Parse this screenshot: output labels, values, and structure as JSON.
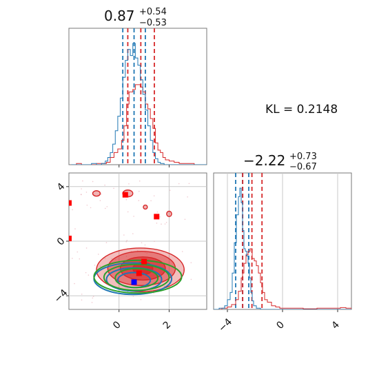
{
  "chart_data": {
    "type": "corner",
    "kl_label": "KL = 0.2148",
    "colors": {
      "ref": "#1f77b4",
      "main": "#d62728",
      "extra": "#2ca02c",
      "grid": "#c8c8c8"
    },
    "param1": {
      "title_value": "0.87",
      "title_plus": "+0.54",
      "title_minus": "−0.53",
      "range": [
        -2.0,
        3.5
      ],
      "ticks": [
        0,
        2
      ],
      "tick_labels": [
        "0",
        "2"
      ],
      "quantiles_blue": [
        0.15,
        0.6,
        1.05
      ],
      "quantiles_red": [
        0.35,
        0.87,
        1.41
      ],
      "hist_blue": [
        [
          -1.9,
          0
        ],
        [
          -1.2,
          0
        ],
        [
          -1.1,
          0.01
        ],
        [
          -0.9,
          0
        ],
        [
          -0.7,
          0.01
        ],
        [
          -0.55,
          0.03
        ],
        [
          -0.45,
          0.06
        ],
        [
          -0.35,
          0.1
        ],
        [
          -0.25,
          0.17
        ],
        [
          -0.15,
          0.28
        ],
        [
          -0.05,
          0.4
        ],
        [
          0.05,
          0.55
        ],
        [
          0.15,
          0.72
        ],
        [
          0.25,
          0.86
        ],
        [
          0.35,
          0.95
        ],
        [
          0.45,
          0.9
        ],
        [
          0.55,
          1.0
        ],
        [
          0.65,
          0.88
        ],
        [
          0.75,
          0.82
        ],
        [
          0.85,
          0.7
        ],
        [
          0.95,
          0.58
        ],
        [
          1.05,
          0.45
        ],
        [
          1.15,
          0.32
        ],
        [
          1.25,
          0.2
        ],
        [
          1.35,
          0.1
        ],
        [
          1.45,
          0.05
        ],
        [
          1.55,
          0.02
        ],
        [
          1.65,
          0.01
        ],
        [
          1.8,
          0
        ],
        [
          3.5,
          0
        ]
      ],
      "hist_red": [
        [
          -1.9,
          0
        ],
        [
          -1.7,
          0.01
        ],
        [
          -1.5,
          0
        ],
        [
          -0.9,
          0.01
        ],
        [
          -0.5,
          0.02
        ],
        [
          -0.35,
          0.06
        ],
        [
          -0.2,
          0.1
        ],
        [
          -0.05,
          0.13
        ],
        [
          0.1,
          0.2
        ],
        [
          0.2,
          0.32
        ],
        [
          0.3,
          0.5
        ],
        [
          0.4,
          0.6
        ],
        [
          0.55,
          0.62
        ],
        [
          0.65,
          0.66
        ],
        [
          0.75,
          0.66
        ],
        [
          0.85,
          0.64
        ],
        [
          0.95,
          0.6
        ],
        [
          1.05,
          0.5
        ],
        [
          1.15,
          0.46
        ],
        [
          1.25,
          0.38
        ],
        [
          1.35,
          0.3
        ],
        [
          1.45,
          0.18
        ],
        [
          1.55,
          0.12
        ],
        [
          1.65,
          0.1
        ],
        [
          1.75,
          0.06
        ],
        [
          1.85,
          0.04
        ],
        [
          2.0,
          0.03
        ],
        [
          2.2,
          0.02
        ],
        [
          2.4,
          0.01
        ],
        [
          2.7,
          0.01
        ],
        [
          3.0,
          0
        ],
        [
          3.5,
          0
        ]
      ]
    },
    "param2": {
      "title_value": "−2.22",
      "title_plus": "+0.73",
      "title_minus": "−0.67",
      "range": [
        -5.0,
        5.0
      ],
      "ticks": [
        -4,
        0,
        4
      ],
      "tick_labels": [
        "−4",
        "0",
        "4"
      ],
      "quantiles_blue": [
        -3.4,
        -2.9,
        -2.45
      ],
      "quantiles_red": [
        -2.89,
        -2.22,
        -1.49
      ],
      "hist_blue": [
        [
          -5.0,
          0
        ],
        [
          -4.6,
          0.01
        ],
        [
          -4.2,
          0.03
        ],
        [
          -4.0,
          0.08
        ],
        [
          -3.8,
          0.14
        ],
        [
          -3.65,
          0.3
        ],
        [
          -3.5,
          0.55
        ],
        [
          -3.35,
          0.78
        ],
        [
          -3.2,
          0.93
        ],
        [
          -3.1,
          1.0
        ],
        [
          -3.0,
          0.88
        ],
        [
          -2.9,
          0.65
        ],
        [
          -2.8,
          0.5
        ],
        [
          -2.7,
          0.48
        ],
        [
          -2.6,
          0.44
        ],
        [
          -2.5,
          0.38
        ],
        [
          -2.4,
          0.26
        ],
        [
          -2.3,
          0.14
        ],
        [
          -2.2,
          0.07
        ],
        [
          -2.1,
          0.03
        ],
        [
          -1.9,
          0.01
        ],
        [
          -1.6,
          0
        ],
        [
          5.0,
          0
        ]
      ],
      "hist_red": [
        [
          -5.0,
          0
        ],
        [
          -4.4,
          0.01
        ],
        [
          -4.0,
          0.02
        ],
        [
          -3.7,
          0.04
        ],
        [
          -3.4,
          0.08
        ],
        [
          -3.2,
          0.15
        ],
        [
          -3.0,
          0.26
        ],
        [
          -2.9,
          0.3
        ],
        [
          -2.8,
          0.38
        ],
        [
          -2.65,
          0.45
        ],
        [
          -2.5,
          0.48
        ],
        [
          -2.35,
          0.5
        ],
        [
          -2.2,
          0.42
        ],
        [
          -2.05,
          0.4
        ],
        [
          -1.9,
          0.36
        ],
        [
          -1.75,
          0.3
        ],
        [
          -1.6,
          0.22
        ],
        [
          -1.45,
          0.14
        ],
        [
          -1.3,
          0.08
        ],
        [
          -1.1,
          0.06
        ],
        [
          -0.8,
          0.03
        ],
        [
          -0.5,
          0.02
        ],
        [
          -0.2,
          0.01
        ],
        [
          0.5,
          0.01
        ],
        [
          1.5,
          0.005
        ],
        [
          2.5,
          0.01
        ],
        [
          3.5,
          0.01
        ],
        [
          4.2,
          0.015
        ],
        [
          4.6,
          0.01
        ],
        [
          5.0,
          0
        ]
      ]
    },
    "scatter": {
      "y_range": [
        -5.0,
        5.0
      ],
      "y_ticks": [
        -4,
        0,
        4
      ],
      "y_tick_labels": [
        "−4",
        "0",
        "4"
      ],
      "red_markers": [
        [
          0.25,
          3.4
        ],
        [
          1.5,
          1.8
        ],
        [
          1.0,
          -1.5
        ],
        [
          0.8,
          -2.35
        ],
        [
          -2.0,
          2.8
        ],
        [
          -2.0,
          0.2
        ]
      ],
      "blue_markers": [
        [
          0.6,
          -3.0
        ]
      ],
      "red_filled_contours": [
        {
          "cx": 0.85,
          "cy": -2.1,
          "rx": 1.75,
          "ry": 1.6,
          "opacity": 0.3
        },
        {
          "cx": 0.9,
          "cy": -2.0,
          "rx": 1.35,
          "ry": 1.25,
          "opacity": 0.45
        },
        {
          "cx": 0.95,
          "cy": -2.0,
          "rx": 0.9,
          "ry": 0.85,
          "opacity": 0.6
        },
        {
          "cx": 0.95,
          "cy": -2.0,
          "rx": 0.4,
          "ry": 0.45,
          "opacity": 0.8
        }
      ],
      "red_islands": [
        {
          "cx": 0.35,
          "cy": 3.5,
          "rx": 0.2,
          "ry": 0.25
        },
        {
          "cx": -0.9,
          "cy": 3.5,
          "rx": 0.15,
          "ry": 0.2
        },
        {
          "cx": 2.0,
          "cy": 2.0,
          "rx": 0.1,
          "ry": 0.2
        },
        {
          "cx": 1.05,
          "cy": 2.5,
          "rx": 0.08,
          "ry": 0.15
        }
      ],
      "blue_contours": [
        {
          "cx": 0.55,
          "cy": -2.75,
          "rx": 1.55,
          "ry": 1.15
        },
        {
          "cx": 0.6,
          "cy": -2.8,
          "rx": 1.1,
          "ry": 0.85
        },
        {
          "cx": 0.6,
          "cy": -2.85,
          "rx": 0.65,
          "ry": 0.55
        }
      ],
      "green_contours": [
        {
          "cx": 0.75,
          "cy": -2.6,
          "rx": 1.75,
          "ry": 1.2
        },
        {
          "cx": 0.7,
          "cy": -2.65,
          "rx": 1.3,
          "ry": 0.95
        },
        {
          "cx": 0.7,
          "cy": -2.7,
          "rx": 0.85,
          "ry": 0.7
        }
      ]
    }
  }
}
